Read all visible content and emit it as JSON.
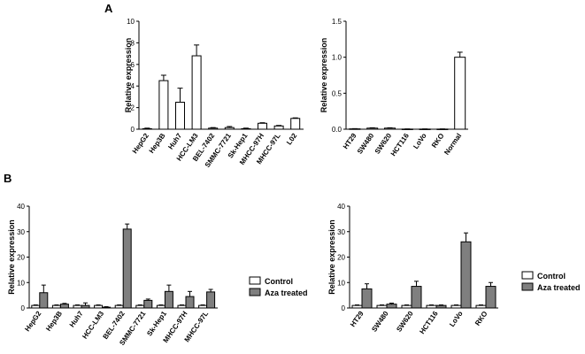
{
  "panels": {
    "a": "A",
    "b": "B"
  },
  "chart_data": [
    {
      "type": "bar",
      "panel": "A",
      "ylabel": "Relative expression",
      "ylim": [
        0,
        10
      ],
      "yticks": [
        0,
        2,
        4,
        6,
        8,
        10
      ],
      "categories": [
        "HepG2",
        "Hep3B",
        "Huh7",
        "HCC-LM3",
        "BEL-7402",
        "SMMC-7721",
        "Sk-Hep1",
        "MHCC-97H",
        "MHCC-97L",
        "L02"
      ],
      "values": [
        0.05,
        4.5,
        2.5,
        6.8,
        0.1,
        0.15,
        0.05,
        0.55,
        0.3,
        1.0
      ],
      "errors": [
        0.05,
        0.5,
        1.3,
        1.0,
        0.05,
        0.1,
        0.05,
        0.05,
        0.05,
        0.05
      ],
      "legend": "none"
    },
    {
      "type": "bar",
      "panel": "A",
      "ylabel": "Relative expression",
      "ylim": [
        0,
        1.5
      ],
      "yticks": [
        "0.0",
        "0.5",
        "1.0",
        "1.5"
      ],
      "categories": [
        "HT29",
        "SW480",
        "SW620",
        "HCT116",
        "LoVo",
        "RKO",
        "Normal"
      ],
      "values": [
        0.005,
        0.015,
        0.015,
        0.002,
        0.002,
        0.002,
        1.0
      ],
      "errors": [
        0.003,
        0.005,
        0.005,
        0.002,
        0.002,
        0.002,
        0.07
      ],
      "legend": "none"
    },
    {
      "type": "bar",
      "panel": "B",
      "ylabel": "Relative expression",
      "ylim": [
        0,
        40
      ],
      "yticks": [
        0,
        10,
        20,
        30,
        40
      ],
      "categories": [
        "HepG2",
        "Hep3B",
        "Huh7",
        "HCC-LM3",
        "BEL-7402",
        "SMMC-7721",
        "Sk-Hep1",
        "MHCC-97H",
        "MHCC-97L"
      ],
      "series": [
        {
          "name": "Control",
          "values": [
            1,
            1,
            1,
            1,
            1,
            1,
            1,
            1,
            1
          ],
          "errors": [
            0.2,
            0.2,
            0.2,
            0.2,
            0.2,
            0.2,
            0.2,
            0.2,
            0.2
          ],
          "color": "#ffffff"
        },
        {
          "name": "Aza treated",
          "values": [
            6,
            1.5,
            1,
            0.3,
            31,
            3,
            6.5,
            4.5,
            6.3
          ],
          "errors": [
            3,
            0.3,
            1,
            0.2,
            2,
            0.5,
            2.5,
            2,
            1
          ],
          "color": "#7f7f7f"
        }
      ],
      "legend": "right"
    },
    {
      "type": "bar",
      "panel": "B",
      "ylabel": "Relative expression",
      "ylim": [
        0,
        40
      ],
      "yticks": [
        0,
        10,
        20,
        30,
        40
      ],
      "categories": [
        "HT29",
        "SW480",
        "SW620",
        "HCT116",
        "LoVo",
        "RKO"
      ],
      "series": [
        {
          "name": "Control",
          "values": [
            1,
            1,
            1,
            1,
            1,
            1
          ],
          "errors": [
            0.2,
            0.2,
            0.2,
            0.2,
            0.2,
            0.2
          ],
          "color": "#ffffff"
        },
        {
          "name": "Aza treated",
          "values": [
            7.5,
            1.5,
            8.5,
            1,
            26,
            8.5
          ],
          "errors": [
            2,
            0.4,
            2,
            0.2,
            3.5,
            1.5
          ],
          "color": "#7f7f7f"
        }
      ],
      "legend": "right"
    }
  ]
}
